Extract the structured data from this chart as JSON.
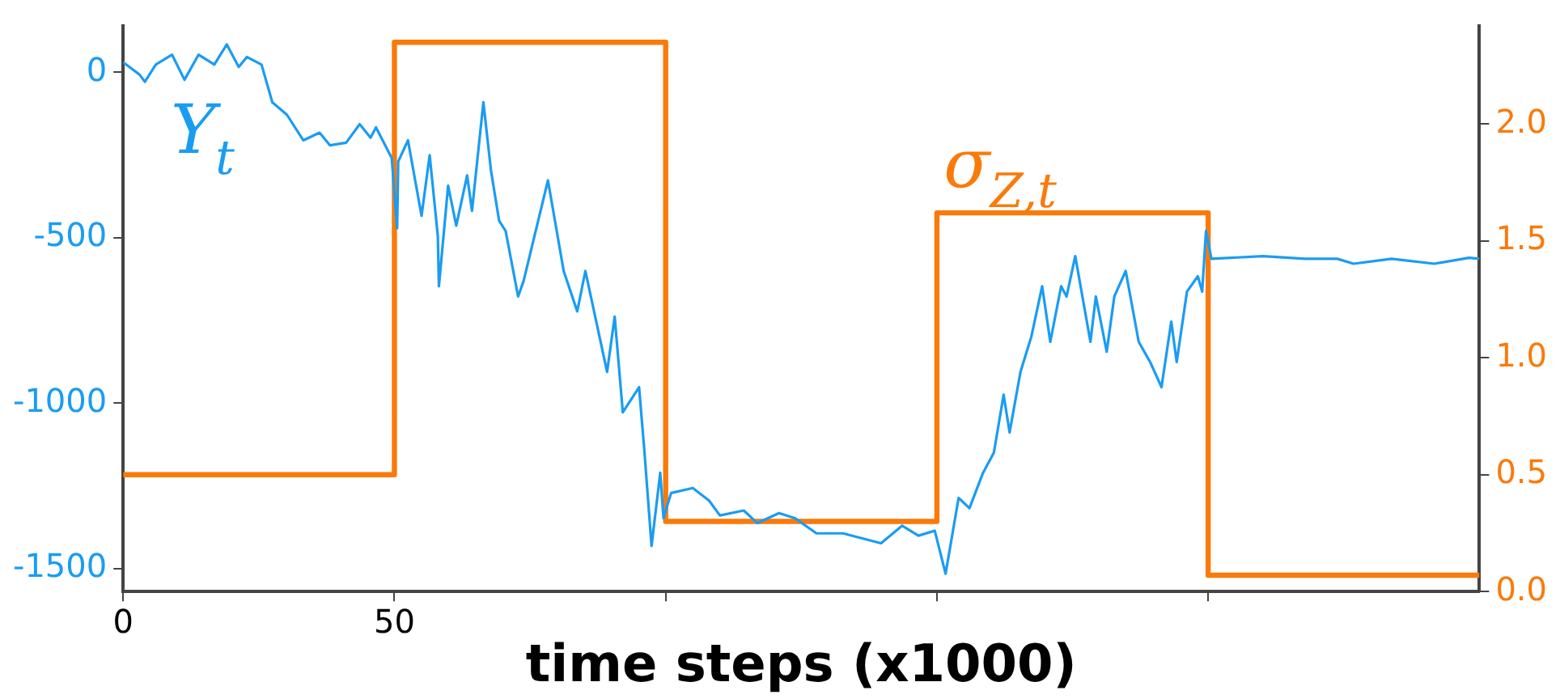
{
  "chart_data": {
    "type": "line",
    "xlabel": "time steps (x1000)",
    "xlim": [
      0,
      250
    ],
    "xticks": [
      0,
      50,
      {
        "value": 100,
        "label": null
      },
      {
        "value": 150,
        "label": null
      },
      {
        "value": 200,
        "label": null
      }
    ],
    "ylim": [
      -1570,
      140
    ],
    "yticks": [
      0,
      -500,
      -1000,
      -1500
    ],
    "y2lim": [
      0,
      2.42
    ],
    "y2ticks": [
      {
        "value": 0,
        "label": "0.0"
      },
      {
        "value": 0.5,
        "label": "0.5"
      },
      {
        "value": 1,
        "label": "1.0"
      },
      {
        "value": 1.5,
        "label": "1.5"
      },
      {
        "value": 2,
        "label": "2.0"
      }
    ],
    "grid": false,
    "legend": false,
    "marker": "none",
    "line_style": "solid",
    "series": [
      {
        "name": "Y$_{t}$",
        "color": "#1a9cf3",
        "type": "line",
        "x": [
          0,
          3,
          4,
          6,
          9,
          11.3,
          13.9,
          16.8,
          19.1,
          21.3,
          22.8,
          25.5,
          27.5,
          30.2,
          33.2,
          36.2,
          38.1,
          41.1,
          43.6,
          45.6,
          46.6,
          49.5,
          50.5,
          50.7,
          52.5,
          54,
          55,
          56.5,
          58,
          58.2,
          59.9,
          61.4,
          63.4,
          64.3,
          66.4,
          67.8,
          69.3,
          70.5,
          72.8,
          73.8,
          78.3,
          81.2,
          83.7,
          85.2,
          89.2,
          90.6,
          92.1,
          95.1,
          96.1,
          97.4,
          99,
          99.6,
          101,
          105,
          108,
          110,
          114.4,
          116.9,
          120.9,
          123.8,
          127.8,
          132.7,
          139.7,
          143.6,
          146.6,
          149.6,
          151.6,
          154,
          156,
          158.5,
          160.5,
          162.3,
          163.4,
          165.4,
          167.4,
          169.4,
          170.9,
          172.9,
          173.9,
          175.5,
          178.3,
          179.3,
          181.3,
          182.7,
          184.8,
          187.2,
          189.3,
          191.4,
          193.2,
          194.2,
          196.1,
          198.1,
          198.9,
          199.6,
          200.6,
          210.1,
          217.9,
          223.8,
          226.8,
          233.8,
          241.7,
          248.1,
          250
        ],
        "values": [
          30,
          -7,
          -29,
          23,
          53,
          -23,
          53,
          23,
          84,
          16,
          46,
          23,
          -91,
          -129,
          -206,
          -183,
          -221,
          -213,
          -157,
          -198,
          -167,
          -259,
          -472,
          -270,
          -206,
          -343,
          -434,
          -251,
          -495,
          -647,
          -343,
          -464,
          -312,
          -419,
          -91,
          -297,
          -449,
          -480,
          -678,
          -632,
          -327,
          -601,
          -723,
          -601,
          -906,
          -739,
          -1028,
          -952,
          -1150,
          -1432,
          -1211,
          -1348,
          -1272,
          -1257,
          -1295,
          -1340,
          -1325,
          -1363,
          -1333,
          -1348,
          -1394,
          -1394,
          -1424,
          -1371,
          -1401,
          -1386,
          -1516,
          -1287,
          -1318,
          -1211,
          -1150,
          -975,
          -1089,
          -906,
          -800,
          -647,
          -815,
          -647,
          -678,
          -556,
          -815,
          -678,
          -845,
          -678,
          -601,
          -815,
          -876,
          -952,
          -754,
          -876,
          -663,
          -617,
          -663,
          -480,
          -564,
          -556,
          -564,
          -564,
          -579,
          -564,
          -579,
          -561,
          -564
        ]
      },
      {
        "name": "σ$_{Z,t}$",
        "color": "#fa7a0a",
        "type": "step",
        "axis": "y2",
        "x": [
          0,
          50,
          100,
          150,
          200,
          250
        ],
        "values": [
          0.5,
          2.35,
          0.3,
          1.62,
          0.07,
          0.07
        ]
      }
    ]
  }
}
